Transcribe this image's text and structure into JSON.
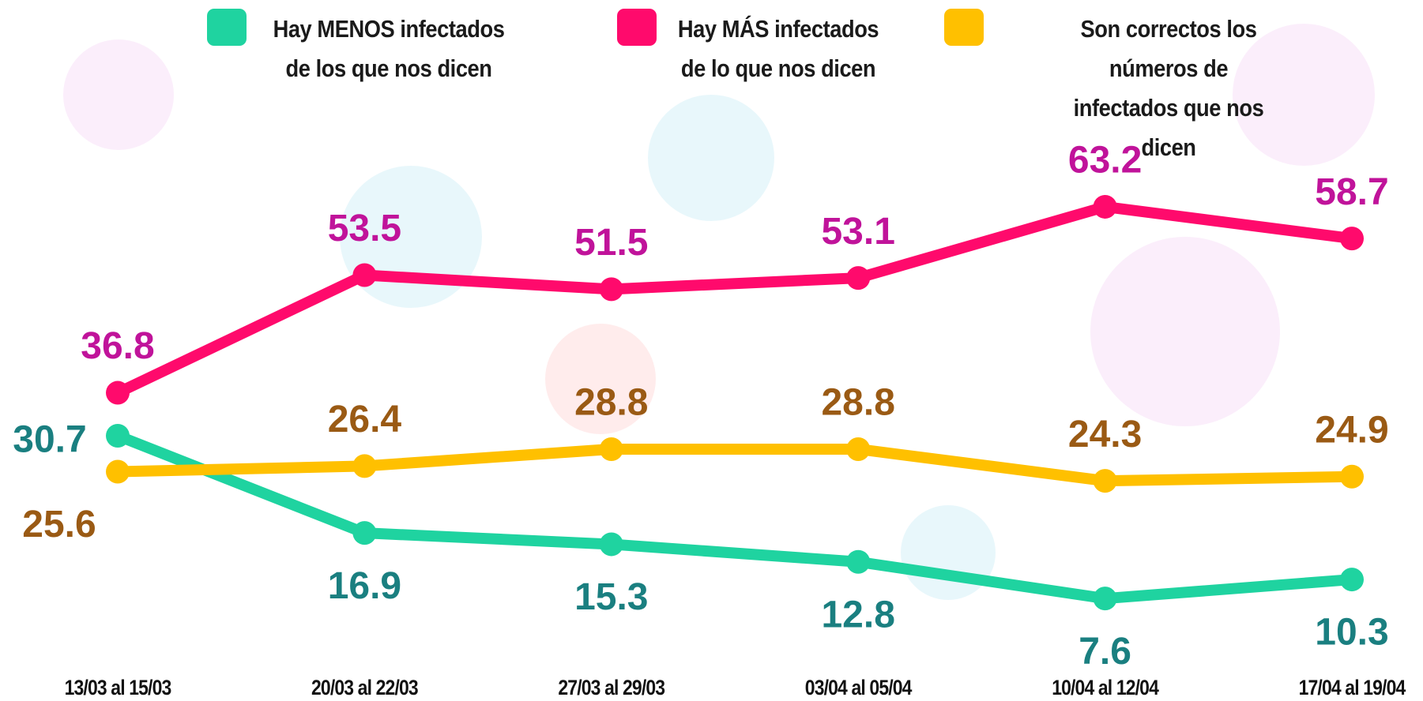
{
  "chart_data": {
    "type": "line",
    "categories": [
      "13/03 al 15/03",
      "20/03 al 22/03",
      "27/03 al 29/03",
      "03/04 al 05/04",
      "10/04 al 12/04",
      "17/04 al 19/04"
    ],
    "series": [
      {
        "name": "Hay MENOS infectados\nde los que nos dicen",
        "color": "#1fd3a0",
        "label_color": "#1a7f80",
        "values": [
          30.7,
          16.9,
          15.3,
          12.8,
          7.6,
          10.3
        ]
      },
      {
        "name": "Hay MÁS infectados\nde lo que nos dicen",
        "color": "#ff0a6c",
        "label_color": "#c0139a",
        "values": [
          36.8,
          53.5,
          51.5,
          53.1,
          63.2,
          58.7
        ]
      },
      {
        "name": "Son correctos los números de\ninfectados que nos dicen",
        "color": "#ffc000",
        "label_color": "#9a5a14",
        "values": [
          25.6,
          26.4,
          28.8,
          28.8,
          24.3,
          24.9
        ]
      }
    ],
    "ylim": [
      0,
      80
    ]
  }
}
